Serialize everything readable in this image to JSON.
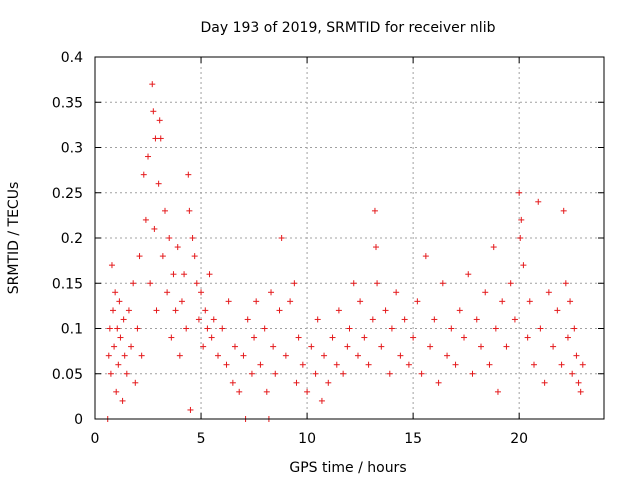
{
  "chart_data": {
    "type": "scatter",
    "title": "Day 193 of 2019, SRMTID for receiver nlib",
    "xlabel": "GPS time / hours",
    "ylabel": "SRMTID / TECUs",
    "xlim": [
      0,
      24
    ],
    "ylim": [
      0,
      0.4
    ],
    "xticks": [
      "0",
      "5",
      "10",
      "15",
      "20"
    ],
    "xtick_values": [
      0,
      5,
      10,
      15,
      20
    ],
    "yticks": [
      "0",
      "0.05",
      "0.1",
      "0.15",
      "0.2",
      "0.25",
      "0.3",
      "0.35",
      "0.4"
    ],
    "ytick_values": [
      0,
      0.05,
      0.1,
      0.15,
      0.2,
      0.25,
      0.3,
      0.35,
      0.4
    ],
    "grid": true,
    "marker": "+",
    "series_color": "#e41a1c",
    "series": [
      {
        "name": "SRMTID",
        "points": [
          [
            0.6,
            0.0
          ],
          [
            0.65,
            0.07
          ],
          [
            0.7,
            0.1
          ],
          [
            0.75,
            0.05
          ],
          [
            0.8,
            0.17
          ],
          [
            0.85,
            0.12
          ],
          [
            0.9,
            0.08
          ],
          [
            0.95,
            0.14
          ],
          [
            1.0,
            0.03
          ],
          [
            1.05,
            0.1
          ],
          [
            1.1,
            0.06
          ],
          [
            1.15,
            0.13
          ],
          [
            1.2,
            0.09
          ],
          [
            1.3,
            0.02
          ],
          [
            1.35,
            0.11
          ],
          [
            1.4,
            0.07
          ],
          [
            1.5,
            0.05
          ],
          [
            1.6,
            0.12
          ],
          [
            1.7,
            0.08
          ],
          [
            1.8,
            0.15
          ],
          [
            1.9,
            0.04
          ],
          [
            2.0,
            0.1
          ],
          [
            2.1,
            0.18
          ],
          [
            2.2,
            0.07
          ],
          [
            2.3,
            0.27
          ],
          [
            2.4,
            0.22
          ],
          [
            2.5,
            0.29
          ],
          [
            2.6,
            0.15
          ],
          [
            2.7,
            0.37
          ],
          [
            2.75,
            0.34
          ],
          [
            2.8,
            0.21
          ],
          [
            2.85,
            0.31
          ],
          [
            2.9,
            0.12
          ],
          [
            3.0,
            0.26
          ],
          [
            3.05,
            0.33
          ],
          [
            3.1,
            0.31
          ],
          [
            3.2,
            0.18
          ],
          [
            3.3,
            0.23
          ],
          [
            3.4,
            0.14
          ],
          [
            3.5,
            0.2
          ],
          [
            3.6,
            0.09
          ],
          [
            3.7,
            0.16
          ],
          [
            3.8,
            0.12
          ],
          [
            3.9,
            0.19
          ],
          [
            4.0,
            0.07
          ],
          [
            4.1,
            0.13
          ],
          [
            4.2,
            0.16
          ],
          [
            4.3,
            0.1
          ],
          [
            4.4,
            0.27
          ],
          [
            4.45,
            0.23
          ],
          [
            4.5,
            0.01
          ],
          [
            4.6,
            0.2
          ],
          [
            4.7,
            0.18
          ],
          [
            4.8,
            0.15
          ],
          [
            4.9,
            0.11
          ],
          [
            5.0,
            0.14
          ],
          [
            5.1,
            0.08
          ],
          [
            5.2,
            0.12
          ],
          [
            5.3,
            0.1
          ],
          [
            5.4,
            0.16
          ],
          [
            5.5,
            0.09
          ],
          [
            5.6,
            0.11
          ],
          [
            5.8,
            0.07
          ],
          [
            6.0,
            0.1
          ],
          [
            6.2,
            0.06
          ],
          [
            6.3,
            0.13
          ],
          [
            6.5,
            0.04
          ],
          [
            6.6,
            0.08
          ],
          [
            6.8,
            0.03
          ],
          [
            7.0,
            0.07
          ],
          [
            7.1,
            0.0
          ],
          [
            7.2,
            0.11
          ],
          [
            7.4,
            0.05
          ],
          [
            7.5,
            0.09
          ],
          [
            7.6,
            0.13
          ],
          [
            7.8,
            0.06
          ],
          [
            8.0,
            0.1
          ],
          [
            8.1,
            0.03
          ],
          [
            8.2,
            0.0
          ],
          [
            8.3,
            0.14
          ],
          [
            8.4,
            0.08
          ],
          [
            8.5,
            0.05
          ],
          [
            8.7,
            0.12
          ],
          [
            8.8,
            0.2
          ],
          [
            9.0,
            0.07
          ],
          [
            9.2,
            0.13
          ],
          [
            9.4,
            0.15
          ],
          [
            9.5,
            0.04
          ],
          [
            9.6,
            0.09
          ],
          [
            9.8,
            0.06
          ],
          [
            10.0,
            0.03
          ],
          [
            10.2,
            0.08
          ],
          [
            10.4,
            0.05
          ],
          [
            10.5,
            0.11
          ],
          [
            10.7,
            0.02
          ],
          [
            10.8,
            0.07
          ],
          [
            11.0,
            0.04
          ],
          [
            11.2,
            0.09
          ],
          [
            11.4,
            0.06
          ],
          [
            11.5,
            0.12
          ],
          [
            11.7,
            0.05
          ],
          [
            11.9,
            0.08
          ],
          [
            12.0,
            0.1
          ],
          [
            12.2,
            0.15
          ],
          [
            12.4,
            0.07
          ],
          [
            12.5,
            0.13
          ],
          [
            12.7,
            0.09
          ],
          [
            12.9,
            0.06
          ],
          [
            13.1,
            0.11
          ],
          [
            13.2,
            0.23
          ],
          [
            13.25,
            0.19
          ],
          [
            13.3,
            0.15
          ],
          [
            13.5,
            0.08
          ],
          [
            13.7,
            0.12
          ],
          [
            13.9,
            0.05
          ],
          [
            14.0,
            0.1
          ],
          [
            14.2,
            0.14
          ],
          [
            14.4,
            0.07
          ],
          [
            14.6,
            0.11
          ],
          [
            14.8,
            0.06
          ],
          [
            15.0,
            0.09
          ],
          [
            15.2,
            0.13
          ],
          [
            15.4,
            0.05
          ],
          [
            15.6,
            0.18
          ],
          [
            15.8,
            0.08
          ],
          [
            16.0,
            0.11
          ],
          [
            16.2,
            0.04
          ],
          [
            16.4,
            0.15
          ],
          [
            16.6,
            0.07
          ],
          [
            16.8,
            0.1
          ],
          [
            17.0,
            0.06
          ],
          [
            17.2,
            0.12
          ],
          [
            17.4,
            0.09
          ],
          [
            17.6,
            0.16
          ],
          [
            17.8,
            0.05
          ],
          [
            18.0,
            0.11
          ],
          [
            18.2,
            0.08
          ],
          [
            18.4,
            0.14
          ],
          [
            18.6,
            0.06
          ],
          [
            18.8,
            0.19
          ],
          [
            18.9,
            0.1
          ],
          [
            19.0,
            0.03
          ],
          [
            19.2,
            0.13
          ],
          [
            19.4,
            0.08
          ],
          [
            19.6,
            0.15
          ],
          [
            19.8,
            0.11
          ],
          [
            20.0,
            0.25
          ],
          [
            20.05,
            0.2
          ],
          [
            20.1,
            0.22
          ],
          [
            20.2,
            0.17
          ],
          [
            20.4,
            0.09
          ],
          [
            20.5,
            0.13
          ],
          [
            20.7,
            0.06
          ],
          [
            20.9,
            0.24
          ],
          [
            21.0,
            0.1
          ],
          [
            21.2,
            0.04
          ],
          [
            21.4,
            0.14
          ],
          [
            21.6,
            0.08
          ],
          [
            21.8,
            0.12
          ],
          [
            22.0,
            0.06
          ],
          [
            22.1,
            0.23
          ],
          [
            22.2,
            0.15
          ],
          [
            22.3,
            0.09
          ],
          [
            22.4,
            0.13
          ],
          [
            22.5,
            0.05
          ],
          [
            22.6,
            0.1
          ],
          [
            22.7,
            0.07
          ],
          [
            22.8,
            0.04
          ],
          [
            22.9,
            0.03
          ],
          [
            23.0,
            0.06
          ]
        ]
      }
    ]
  }
}
